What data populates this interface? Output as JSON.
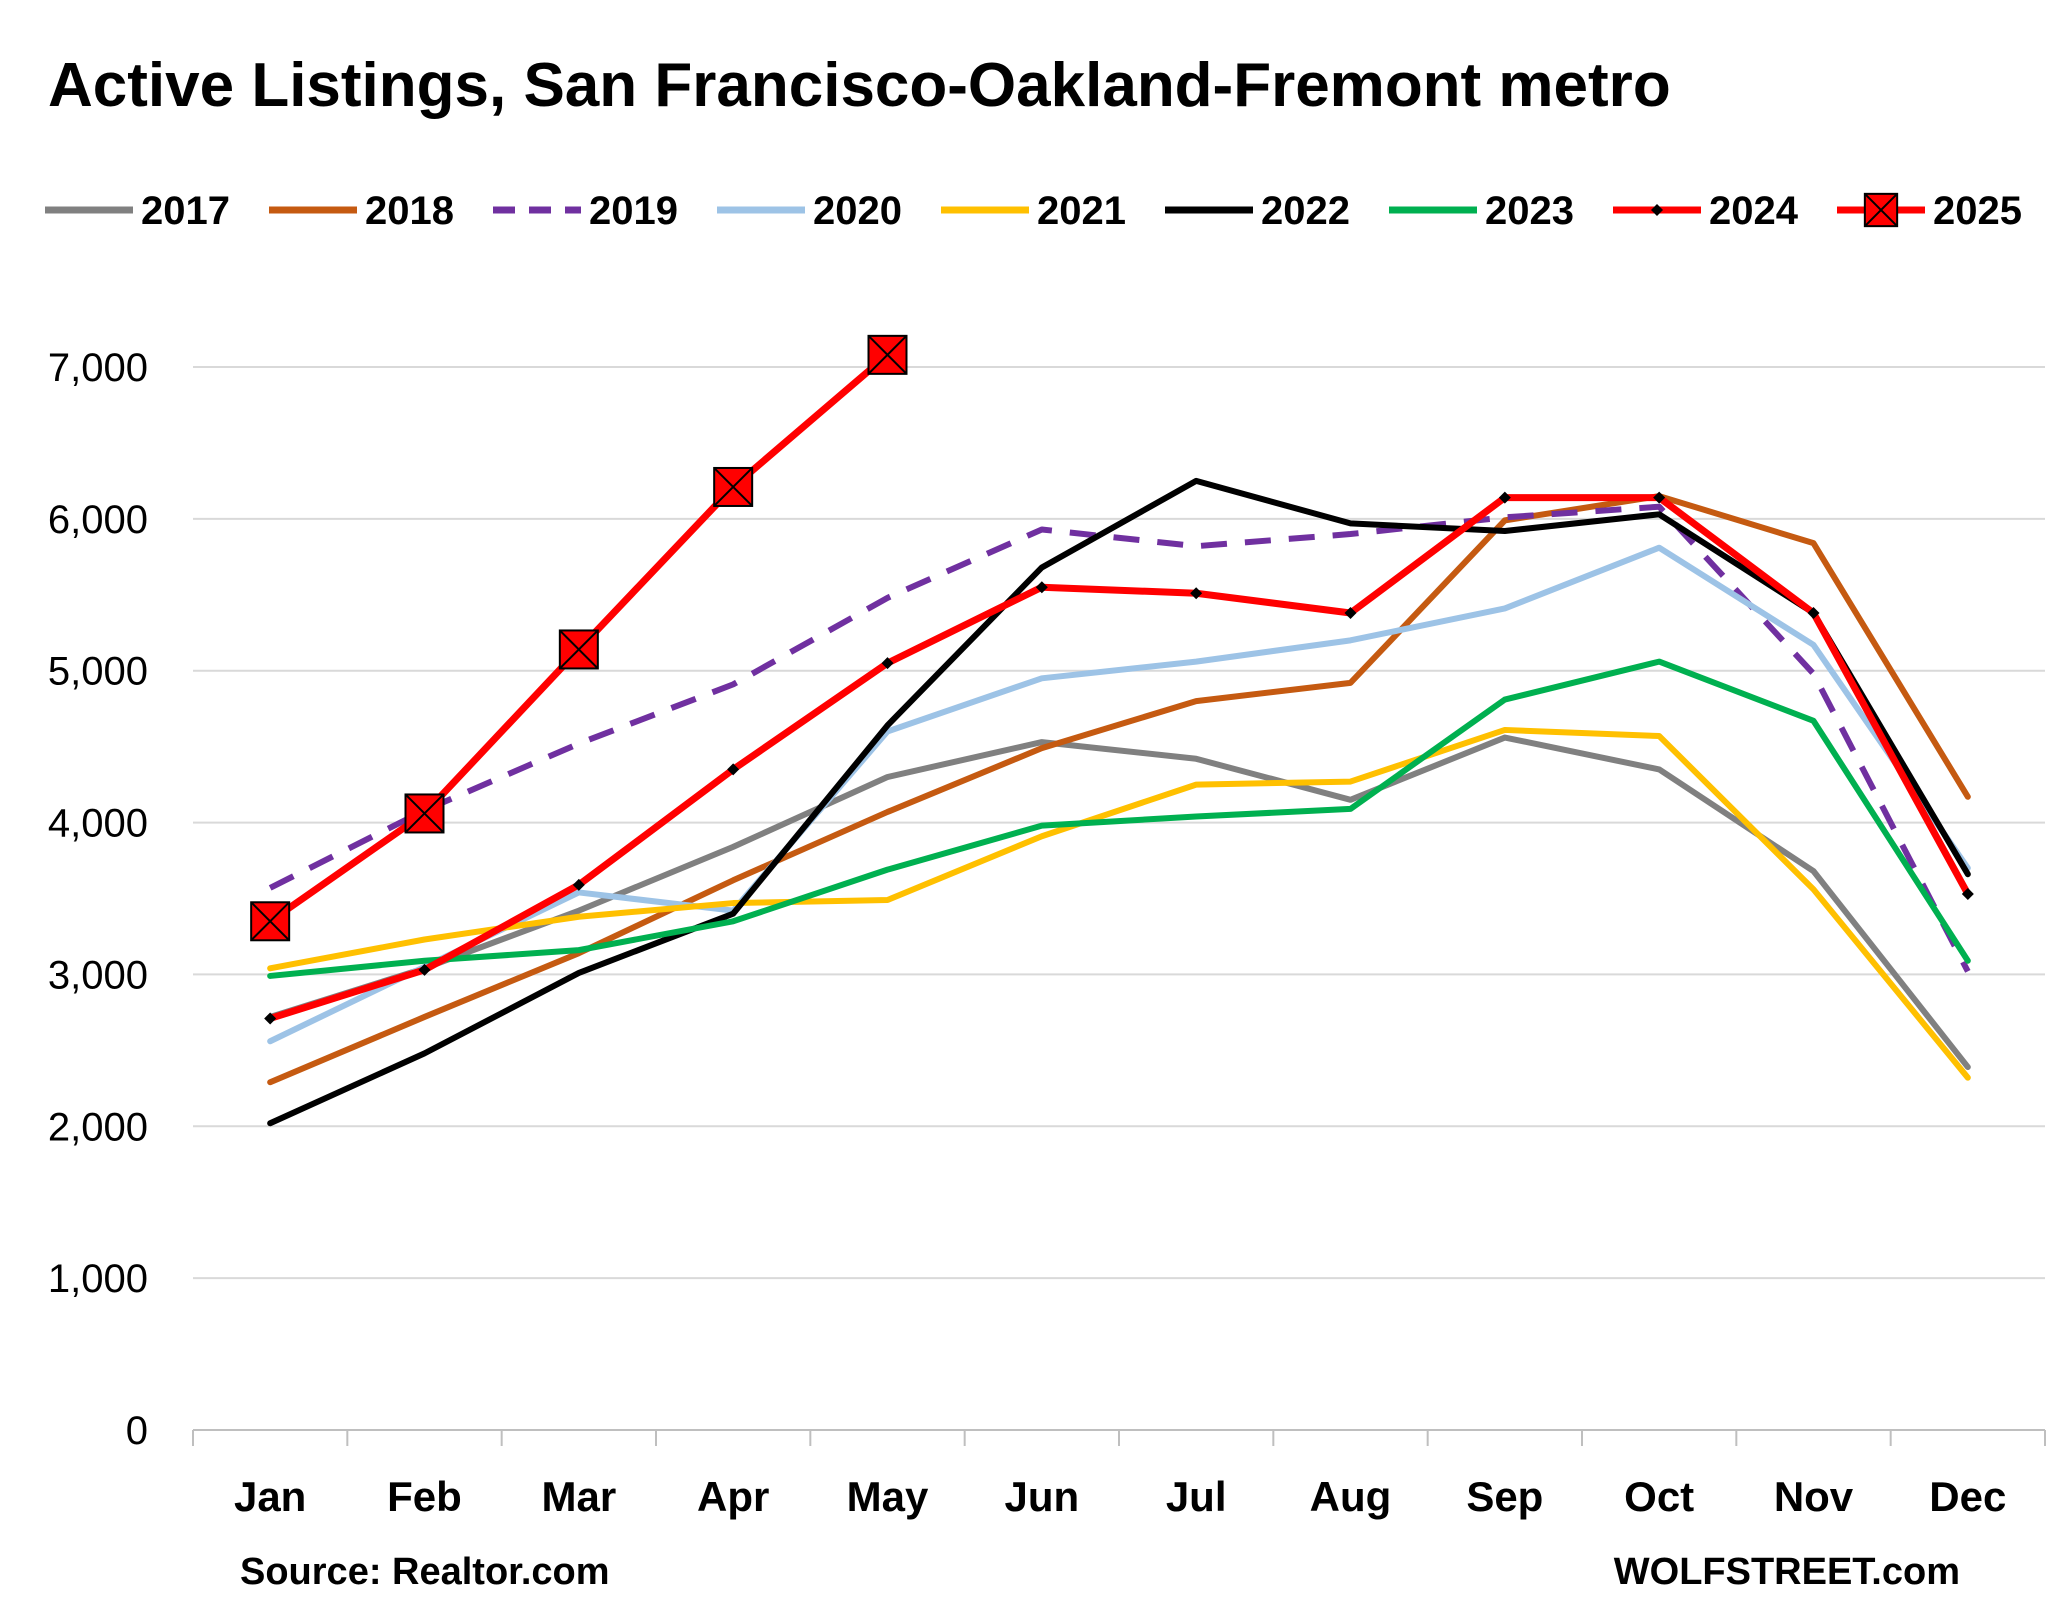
{
  "chart_data": {
    "type": "line",
    "title": "Active Listings, San Francisco-Oakland-Fremont metro",
    "source": "Source: Realtor.com",
    "brand": "WOLFSTREET.com",
    "xlabel": "",
    "ylabel": "",
    "categories": [
      "Jan",
      "Feb",
      "Mar",
      "Apr",
      "May",
      "Jun",
      "Jul",
      "Aug",
      "Sep",
      "Oct",
      "Nov",
      "Dec"
    ],
    "ylim": [
      0,
      7000
    ],
    "yticks": [
      0,
      1000,
      2000,
      3000,
      4000,
      5000,
      6000,
      7000
    ],
    "ytick_labels": [
      "0",
      "1,000",
      "2,000",
      "3,000",
      "4,000",
      "5,000",
      "6,000",
      "7,000"
    ],
    "grid": true,
    "legend_position": "top",
    "series": [
      {
        "name": "2017",
        "color": "#808080",
        "style": "solid",
        "marker": "none",
        "values": [
          2720,
          3040,
          3420,
          3840,
          4300,
          4530,
          4420,
          4150,
          4560,
          4350,
          3680,
          2390
        ]
      },
      {
        "name": "2018",
        "color": "#c55a11",
        "style": "solid",
        "marker": "none",
        "values": [
          2290,
          2720,
          3140,
          3620,
          4070,
          4490,
          4800,
          4920,
          5990,
          6150,
          5840,
          4170
        ]
      },
      {
        "name": "2019",
        "color": "#7030a0",
        "style": "dashed",
        "marker": "none",
        "values": [
          3570,
          4080,
          4520,
          4910,
          5480,
          5930,
          5820,
          5900,
          6010,
          6080,
          4980,
          3020
        ]
      },
      {
        "name": "2020",
        "color": "#9dc3e6",
        "style": "solid",
        "marker": "none",
        "values": [
          2560,
          3050,
          3540,
          3420,
          4600,
          4950,
          5060,
          5200,
          5410,
          5810,
          5170,
          3700
        ]
      },
      {
        "name": "2021",
        "color": "#ffc000",
        "style": "solid",
        "marker": "none",
        "values": [
          3040,
          3230,
          3380,
          3470,
          3490,
          3910,
          4250,
          4270,
          4610,
          4570,
          3560,
          2320
        ]
      },
      {
        "name": "2022",
        "color": "#000000",
        "style": "solid",
        "marker": "none",
        "values": [
          2020,
          2480,
          3010,
          3400,
          4640,
          5680,
          6250,
          5970,
          5920,
          6030,
          5380,
          3660
        ]
      },
      {
        "name": "2023",
        "color": "#00b050",
        "style": "solid",
        "marker": "none",
        "values": [
          2990,
          3090,
          3160,
          3350,
          3690,
          3980,
          4040,
          4090,
          4810,
          5060,
          4670,
          3090
        ]
      },
      {
        "name": "2024",
        "color": "#ff0000",
        "style": "solid",
        "marker": "diamond",
        "values": [
          2710,
          3030,
          3590,
          4350,
          5050,
          5550,
          5510,
          5380,
          6140,
          6140,
          5380,
          3530
        ]
      },
      {
        "name": "2025",
        "color": "#ff0000",
        "style": "solid",
        "marker": "box-x",
        "values": [
          3350,
          4060,
          5140,
          6210,
          7080,
          null,
          null,
          null,
          null,
          null,
          null,
          null
        ]
      }
    ]
  }
}
